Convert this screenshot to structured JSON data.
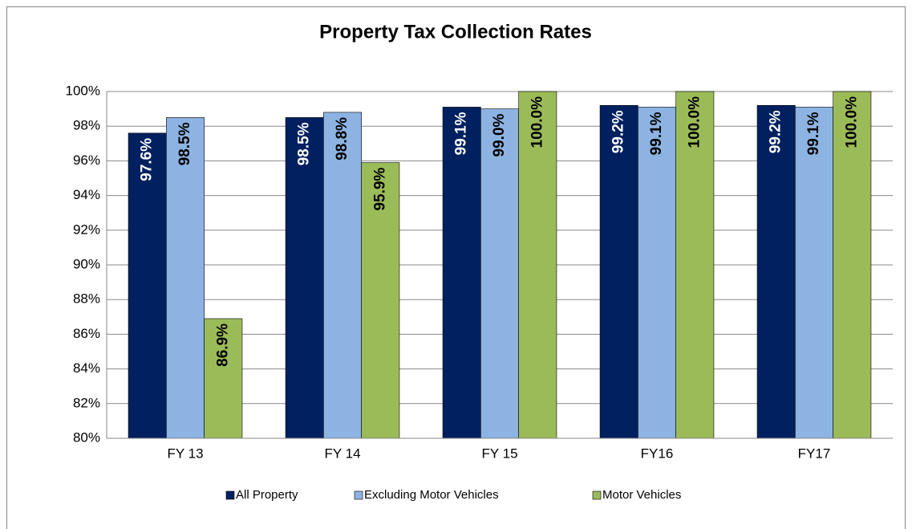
{
  "chart_data": {
    "type": "bar",
    "title": "Property Tax Collection Rates",
    "categories": [
      "FY 13",
      "FY 14",
      "FY 15",
      "FY16",
      "FY17"
    ],
    "series": [
      {
        "name": "All Property",
        "color": "#002060",
        "values": [
          97.6,
          98.5,
          99.1,
          99.2,
          99.2
        ],
        "value_labels": [
          "97.6%",
          "98.5%",
          "99.1%",
          "99.2%",
          "99.2%"
        ]
      },
      {
        "name": "Excluding Motor Vehicles",
        "color": "#8db3e2",
        "values": [
          98.5,
          98.8,
          99.0,
          99.1,
          99.1
        ],
        "value_labels": [
          "98.5%",
          "98.8%",
          "99.0%",
          "99.1%",
          "99.1%"
        ]
      },
      {
        "name": "Motor Vehicles",
        "color": "#9bbb59",
        "values": [
          86.9,
          95.9,
          100.0,
          100.0,
          100.0
        ],
        "value_labels": [
          "86.9%",
          "95.9%",
          "100.0%",
          "100.0%",
          "100.0%"
        ]
      }
    ],
    "ylim": [
      80,
      100
    ],
    "yticks": [
      {
        "value": 80,
        "label": "80%"
      },
      {
        "value": 82,
        "label": "82%"
      },
      {
        "value": 84,
        "label": "84%"
      },
      {
        "value": 86,
        "label": "86%"
      },
      {
        "value": 88,
        "label": "88%"
      },
      {
        "value": 90,
        "label": "90%"
      },
      {
        "value": 92,
        "label": "92%"
      },
      {
        "value": 94,
        "label": "94%"
      },
      {
        "value": 96,
        "label": "96%"
      },
      {
        "value": 98,
        "label": "98%"
      },
      {
        "value": 100,
        "label": "100%"
      }
    ],
    "grid": true,
    "legend": "bottom"
  }
}
